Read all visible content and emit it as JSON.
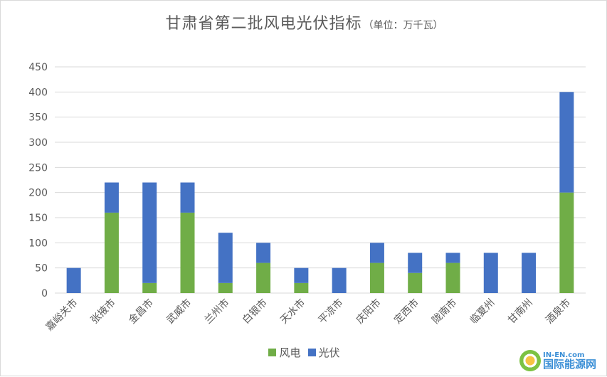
{
  "chart_data": {
    "type": "bar",
    "stacked": true,
    "title": "甘肃省第二批风电光伏指标",
    "subtitle": "（单位：万千瓦）",
    "categories": [
      "嘉峪关市",
      "张掖市",
      "金昌市",
      "武威市",
      "兰州市",
      "白银市",
      "天水市",
      "平凉市",
      "庆阳市",
      "定西市",
      "陇南市",
      "临夏州",
      "甘南州",
      "酒泉市"
    ],
    "series": [
      {
        "name": "风电",
        "color": "#70ad47",
        "values": [
          0,
          160,
          20,
          160,
          20,
          60,
          20,
          0,
          60,
          40,
          60,
          0,
          0,
          200
        ]
      },
      {
        "name": "光伏",
        "color": "#4472c4",
        "values": [
          50,
          60,
          200,
          60,
          100,
          40,
          30,
          50,
          40,
          40,
          20,
          80,
          80,
          200
        ]
      }
    ],
    "ylim": [
      0,
      450
    ],
    "yticks": [
      0,
      50,
      100,
      150,
      200,
      250,
      300,
      350,
      400,
      450
    ],
    "grid": true,
    "legend": "bottom",
    "xlabel": "",
    "ylabel": ""
  },
  "watermark": {
    "en": "IN-EN.com",
    "cn": "国际能源网"
  }
}
